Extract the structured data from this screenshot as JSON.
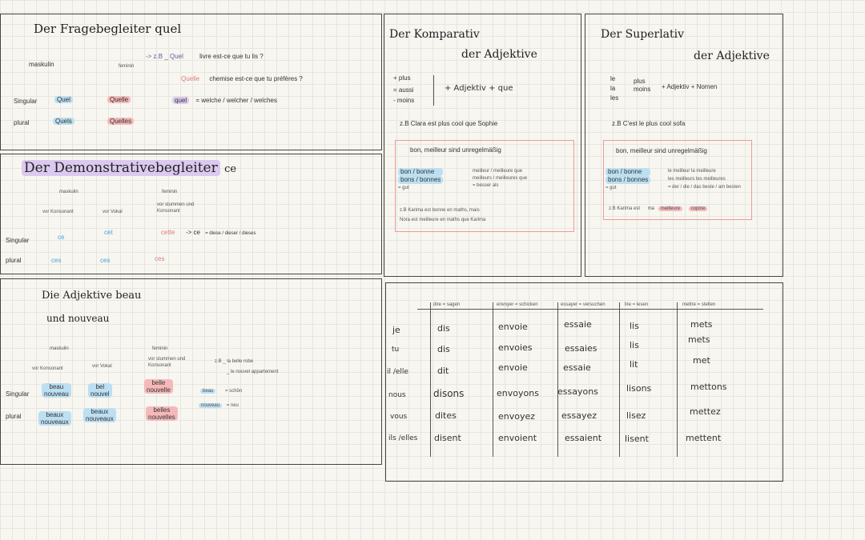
{
  "quel": {
    "title": "Der Fragebegleiter quel",
    "masc": "maskulin",
    "fem": "feminin",
    "example1": "-> z.B _ Quel",
    "ex1_rest": "livre  est-ce que tu lis ?",
    "example2": "Quelle",
    "ex2_rest": "chemise  est-ce que tu préfères ?",
    "quel_word": "quel",
    "quel_eq": "= welche / welcher / welches",
    "singular": "Singular",
    "plural": "plural",
    "sg_m": "Quel",
    "sg_f": "Quelle",
    "pl_m": "Quels",
    "pl_f": "Quelles"
  },
  "demo": {
    "title": "Der Demonstrativebegleiter",
    "title_ce": "ce",
    "masc": "maskulin",
    "fem": "feminin",
    "vor_konsonant": "vor Konsonant",
    "vor_vokal": "vor Vokal",
    "vor_fem": "vor stummen und Konsonant",
    "singular": "Singular",
    "plural": "plural",
    "ce": "ce",
    "cet": "cet",
    "cette": "cette",
    "ces1": "ces",
    "ces2": "ces",
    "ces3": "ces",
    "arrow_ce": "-> ce",
    "meaning": "= diese / dieser / dieses"
  },
  "adj": {
    "title": "Die Adjektive beau",
    "title2": "und nouveau",
    "masc": "maskulin",
    "fem": "feminin",
    "vor_konsonant": "vor Konsonant",
    "vor_vokal": "vor Vokal",
    "vor_fem": "vor stummen und Konsonant",
    "singular": "Singular",
    "plural": "plural",
    "sg_m1": "beau",
    "sg_m1b": "nouveau",
    "sg_m2": "bel",
    "sg_m2b": "nouvel",
    "sg_f": "belle",
    "sg_fb": "nouvelle",
    "pl_m1": "beaux",
    "pl_m1b": "nouveaux",
    "pl_m2": "beaux",
    "pl_m2b": "nouveaux",
    "pl_f": "belles",
    "pl_fb": "nouvelles",
    "ex_a": "z.B _ la belle robe",
    "ex_b": "_ le nouvel appartement",
    "beau": "beau",
    "beau_eq": "= schön",
    "nouveau": "nouveau",
    "nouveau_eq": "= neu"
  },
  "komp": {
    "title1": "Der Komparativ",
    "title2": "der Adjektive",
    "plus": "+ plus",
    "aussi": "= aussi",
    "moins": "- moins",
    "formula": "+ Adjektiv + que",
    "example": "z.B  Clara est plus cool que Sophie",
    "irreg": "bon, meilleur sind unregelmäßig",
    "bon": "bon / bonne",
    "bons": "bons / bonnes",
    "gut": "= gut",
    "meilleur": "meilleur / meilleure que",
    "meilleurs": "meilleurs / meilleures que",
    "besser": "= besser als",
    "ex2a": "z.B Karima est bonne en maths, mais",
    "ex2b": "Nora est meilleure en maths que Karima"
  },
  "sup": {
    "title1": "Der Superlativ",
    "title2": "der Adjektive",
    "le": "le",
    "la": "la",
    "les": "les",
    "plus": "plus",
    "moins": "moins",
    "formula": "+ Adjektiv + Nomen",
    "example": "z.B  C'est le plus cool sofa",
    "irreg": "bon, meilleur sind unregelmäßig",
    "bon": "bon / bonne",
    "bons": "bons / bonnes",
    "gut": "= gut",
    "le_meilleur": "le meilleur  la meilleure",
    "les_meilleurs": "les meilleurs  les meilleures",
    "best": "= der / die / das beste / am besten",
    "ex": "z.B Karima est",
    "ex_ma": "ma",
    "ex_meilleure": "meilleure",
    "ex_copine": "copine"
  },
  "verbs": {
    "headers": [
      "dire = sagen",
      "envoyer = schicken",
      "essayer = versuchen",
      "lire = lesen",
      "mettre = stellen"
    ],
    "pronouns": [
      "je",
      "tu",
      "il /elle",
      "nous",
      "vous",
      "ils /elles"
    ],
    "dire": [
      "dis",
      "dis",
      "dit",
      "disons",
      "dites",
      "disent"
    ],
    "envoyer": [
      "envoie",
      "envoies",
      "envoie",
      "envoyons",
      "envoyez",
      "envoient"
    ],
    "essayer": [
      "essaie",
      "essaies",
      "essaie",
      "essayons",
      "essayez",
      "essaient"
    ],
    "lire": [
      "lis",
      "lis",
      "lit",
      "lisons",
      "lisez",
      "lisent"
    ],
    "mettre": [
      "mets",
      "mets",
      "met",
      "mettons",
      "mettez",
      "mettent"
    ]
  }
}
